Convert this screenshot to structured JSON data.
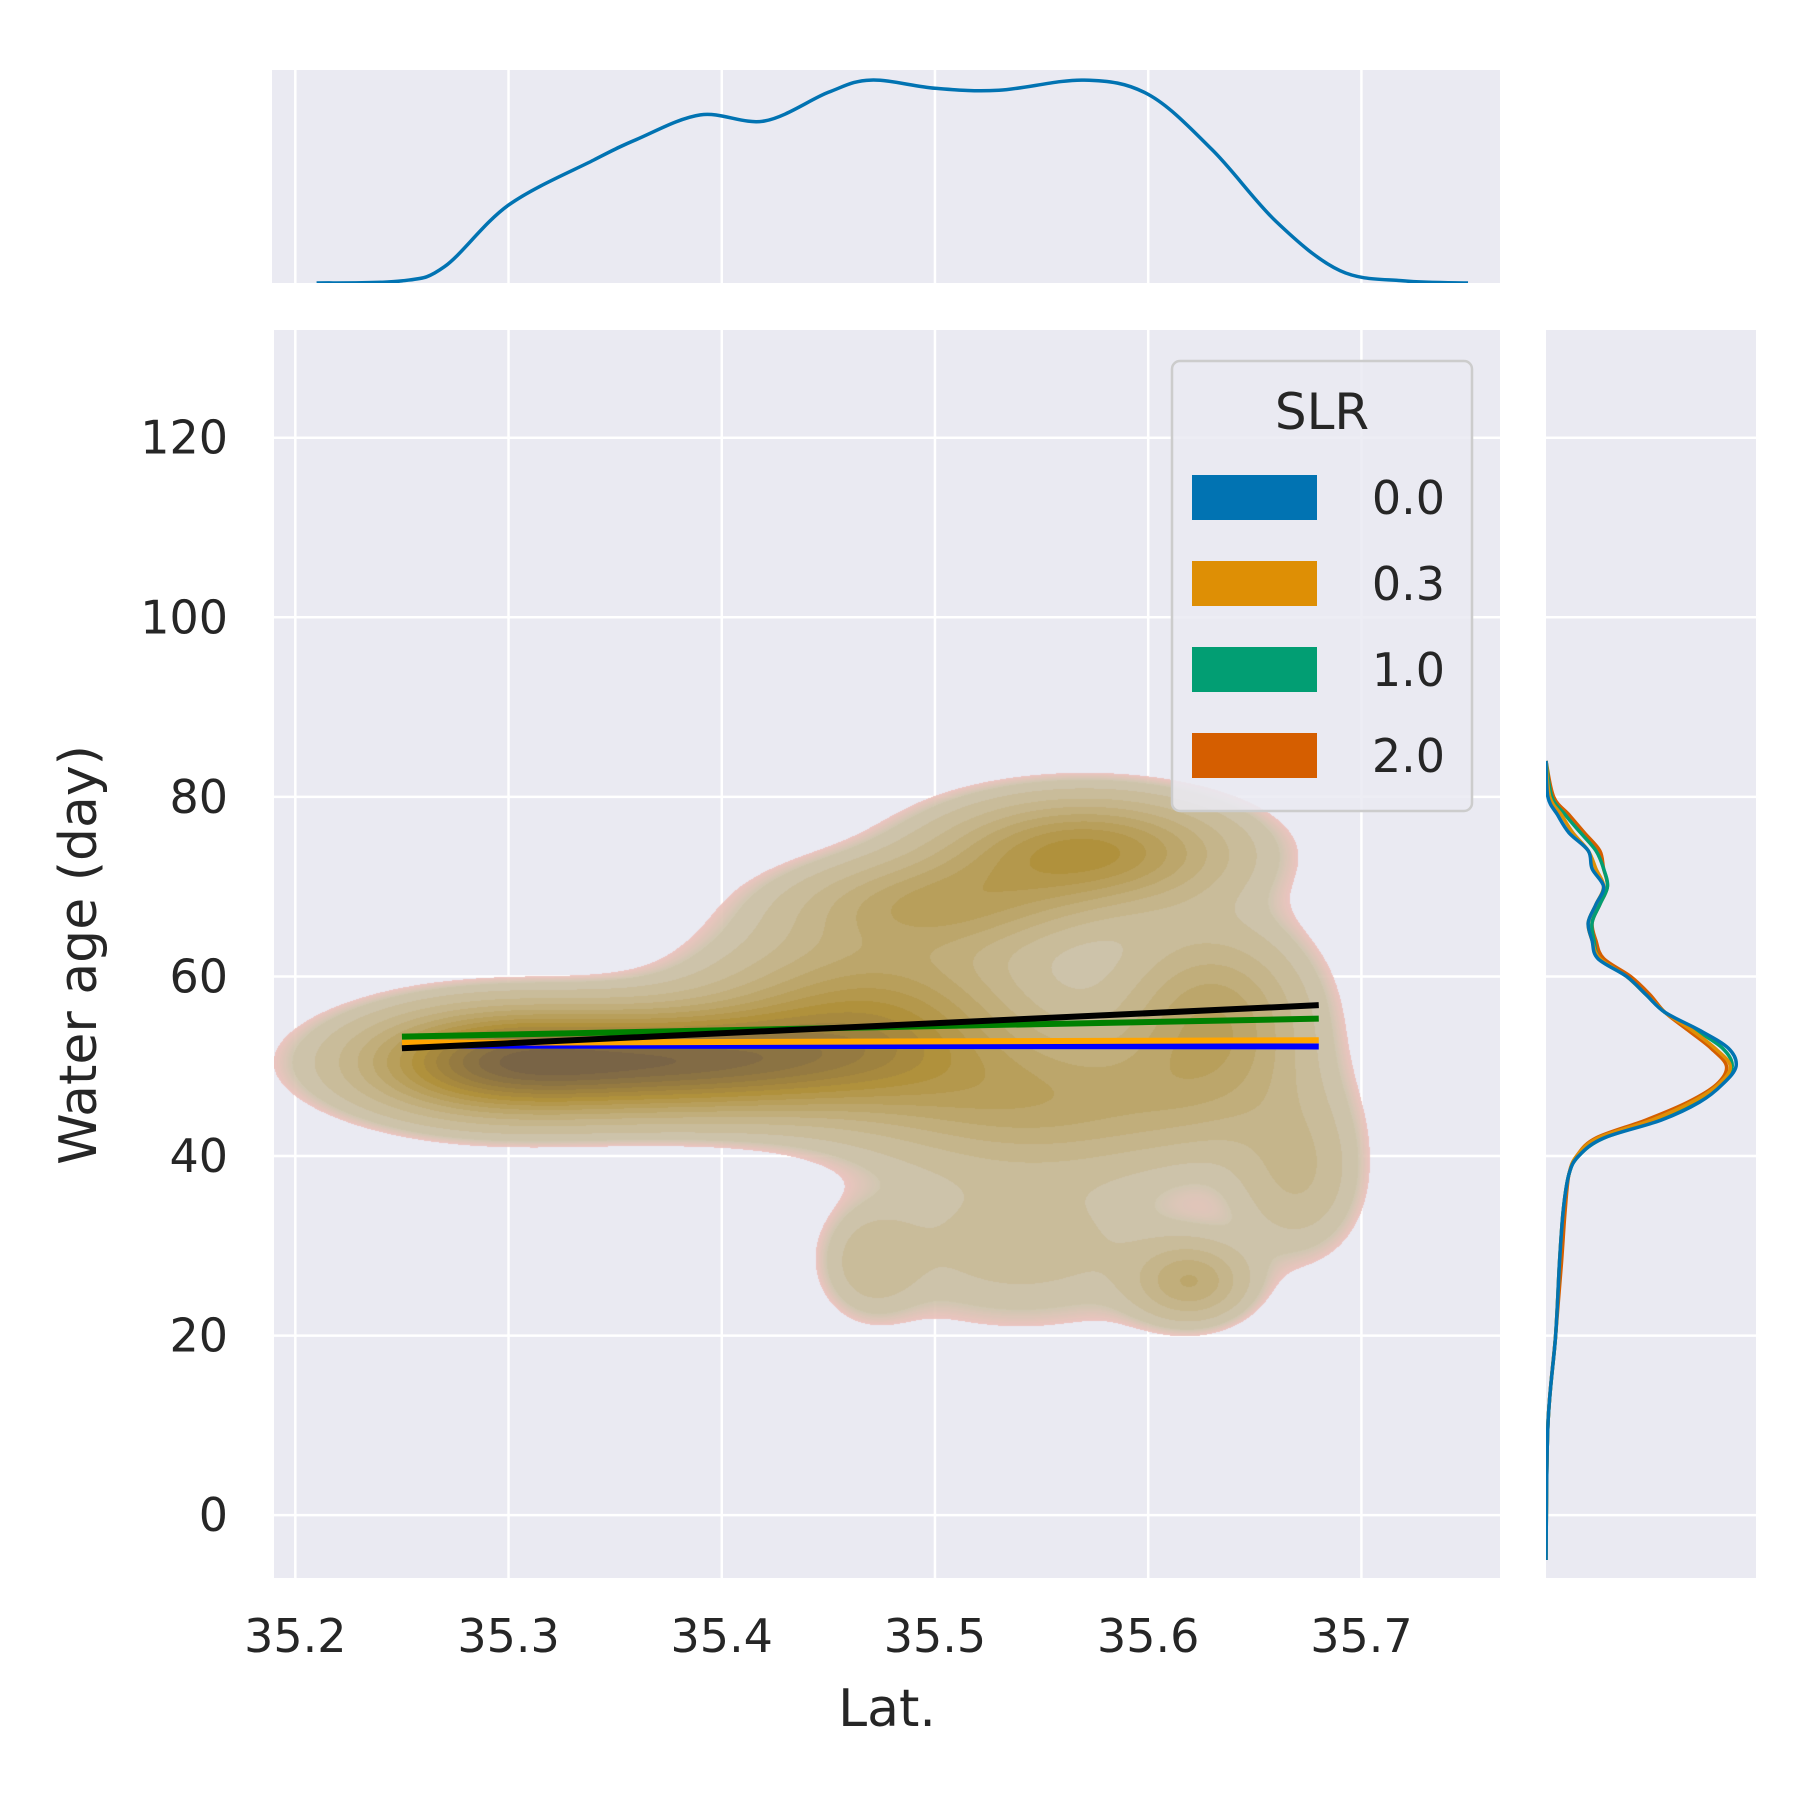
{
  "chart_data": {
    "type": "joint-kde",
    "title": "",
    "xlabel": "Lat.",
    "ylabel": "Water age (day)",
    "xlim": [
      35.19,
      35.765
    ],
    "ylim": [
      -7,
      132
    ],
    "x_ticks": [
      35.2,
      35.3,
      35.4,
      35.5,
      35.6,
      35.7
    ],
    "x_tick_labels": [
      "35.2",
      "35.3",
      "35.4",
      "35.5",
      "35.6",
      "35.7"
    ],
    "y_ticks": [
      0,
      20,
      40,
      60,
      80,
      100,
      120
    ],
    "y_tick_labels": [
      "0",
      "20",
      "40",
      "60",
      "80",
      "100",
      "120"
    ],
    "grid": true,
    "legend": {
      "title": "SLR",
      "placement": "top-right",
      "entries": [
        {
          "label": "0.0",
          "color": "#0173b2"
        },
        {
          "label": "0.3",
          "color": "#de8f05"
        },
        {
          "label": "1.0",
          "color": "#029e73"
        },
        {
          "label": "2.0",
          "color": "#d55e00"
        }
      ]
    },
    "kde_density": {
      "blobs": [
        {
          "x": 35.37,
          "y": 50.5,
          "sx": 0.07,
          "sy": 3.8,
          "w": 1.0
        },
        {
          "x": 35.29,
          "y": 50.5,
          "sx": 0.04,
          "sy": 4.0,
          "w": 0.55
        },
        {
          "x": 35.47,
          "y": 56.0,
          "sx": 0.05,
          "sy": 6.0,
          "w": 0.55
        },
        {
          "x": 35.57,
          "y": 74.0,
          "sx": 0.045,
          "sy": 4.0,
          "w": 0.65
        },
        {
          "x": 35.5,
          "y": 68.0,
          "sx": 0.045,
          "sy": 3.5,
          "w": 0.4
        },
        {
          "x": 35.63,
          "y": 55.0,
          "sx": 0.03,
          "sy": 7.0,
          "w": 0.45
        },
        {
          "x": 35.55,
          "y": 46.0,
          "sx": 0.06,
          "sy": 5.0,
          "w": 0.4
        },
        {
          "x": 35.62,
          "y": 26.0,
          "sx": 0.018,
          "sy": 3.0,
          "w": 0.35
        },
        {
          "x": 35.54,
          "y": 30.0,
          "sx": 0.05,
          "sy": 6.0,
          "w": 0.18
        },
        {
          "x": 35.47,
          "y": 28.0,
          "sx": 0.015,
          "sy": 4.0,
          "w": 0.15
        },
        {
          "x": 35.67,
          "y": 38.0,
          "sx": 0.02,
          "sy": 6.0,
          "w": 0.22
        }
      ],
      "fill_color": "#b3923e"
    },
    "regression_lines": [
      {
        "color": "#0000ff",
        "x": [
          35.25,
          35.68
        ],
        "y": [
          52.3,
          52.2
        ]
      },
      {
        "color": "#ffa500",
        "x": [
          35.25,
          35.68
        ],
        "y": [
          52.6,
          52.9
        ]
      },
      {
        "color": "#008000",
        "x": [
          35.25,
          35.68
        ],
        "y": [
          53.3,
          55.3
        ]
      },
      {
        "color": "#000000",
        "x": [
          35.25,
          35.68
        ],
        "y": [
          52.0,
          56.8
        ]
      }
    ],
    "x_marginal": {
      "color": "#0173b2",
      "x": [
        35.21,
        35.25,
        35.27,
        35.3,
        35.34,
        35.36,
        35.39,
        35.42,
        35.45,
        35.47,
        35.5,
        35.53,
        35.57,
        35.6,
        35.63,
        35.66,
        35.69,
        35.72,
        35.75
      ],
      "density": [
        0.0,
        0.01,
        0.08,
        0.38,
        0.6,
        0.7,
        0.82,
        0.79,
        0.93,
        0.99,
        0.95,
        0.94,
        0.99,
        0.92,
        0.65,
        0.3,
        0.06,
        0.01,
        0.0
      ]
    },
    "y_marginal": [
      {
        "label": "0.0",
        "color": "#0173b2",
        "y": [
          -5,
          10,
          20,
          28,
          34,
          38,
          40,
          42,
          44,
          46,
          48,
          50,
          52,
          54,
          56,
          58,
          60,
          62,
          64,
          66,
          68,
          70,
          72,
          74,
          76,
          78,
          80,
          84
        ],
        "density": [
          0.0,
          0.01,
          0.05,
          0.07,
          0.09,
          0.12,
          0.17,
          0.3,
          0.6,
          0.8,
          0.92,
          0.99,
          0.95,
          0.8,
          0.62,
          0.52,
          0.42,
          0.27,
          0.24,
          0.22,
          0.26,
          0.3,
          0.24,
          0.22,
          0.12,
          0.06,
          0.01,
          0.0
        ]
      },
      {
        "label": "0.3",
        "color": "#de8f05",
        "y": [
          -5,
          10,
          20,
          28,
          34,
          38,
          40,
          42,
          44,
          46,
          48,
          50,
          52,
          54,
          56,
          58,
          60,
          62,
          64,
          66,
          68,
          70,
          72,
          74,
          76,
          78,
          80,
          84
        ],
        "density": [
          0.0,
          0.01,
          0.05,
          0.07,
          0.09,
          0.12,
          0.16,
          0.27,
          0.55,
          0.76,
          0.9,
          0.96,
          0.88,
          0.76,
          0.62,
          0.52,
          0.42,
          0.28,
          0.24,
          0.22,
          0.26,
          0.3,
          0.26,
          0.22,
          0.14,
          0.08,
          0.02,
          0.0
        ]
      },
      {
        "label": "1.0",
        "color": "#029e73",
        "y": [
          -5,
          10,
          20,
          28,
          34,
          38,
          40,
          42,
          44,
          46,
          48,
          50,
          52,
          54,
          56,
          58,
          60,
          62,
          64,
          66,
          68,
          70,
          72,
          74,
          76,
          78,
          80,
          84
        ],
        "density": [
          0.0,
          0.01,
          0.05,
          0.07,
          0.09,
          0.12,
          0.17,
          0.3,
          0.58,
          0.78,
          0.91,
          0.97,
          0.92,
          0.78,
          0.62,
          0.52,
          0.42,
          0.28,
          0.25,
          0.24,
          0.28,
          0.32,
          0.3,
          0.26,
          0.18,
          0.1,
          0.03,
          0.0
        ]
      },
      {
        "label": "2.0",
        "color": "#d55e00",
        "y": [
          -5,
          10,
          20,
          28,
          34,
          38,
          40,
          42,
          44,
          46,
          48,
          50,
          52,
          54,
          56,
          58,
          60,
          62,
          64,
          66,
          68,
          70,
          72,
          74,
          76,
          78,
          80,
          84
        ],
        "density": [
          0.0,
          0.01,
          0.05,
          0.08,
          0.1,
          0.12,
          0.16,
          0.26,
          0.52,
          0.74,
          0.89,
          0.94,
          0.86,
          0.74,
          0.62,
          0.54,
          0.44,
          0.3,
          0.26,
          0.24,
          0.28,
          0.32,
          0.3,
          0.28,
          0.2,
          0.12,
          0.04,
          0.0
        ]
      }
    ]
  }
}
